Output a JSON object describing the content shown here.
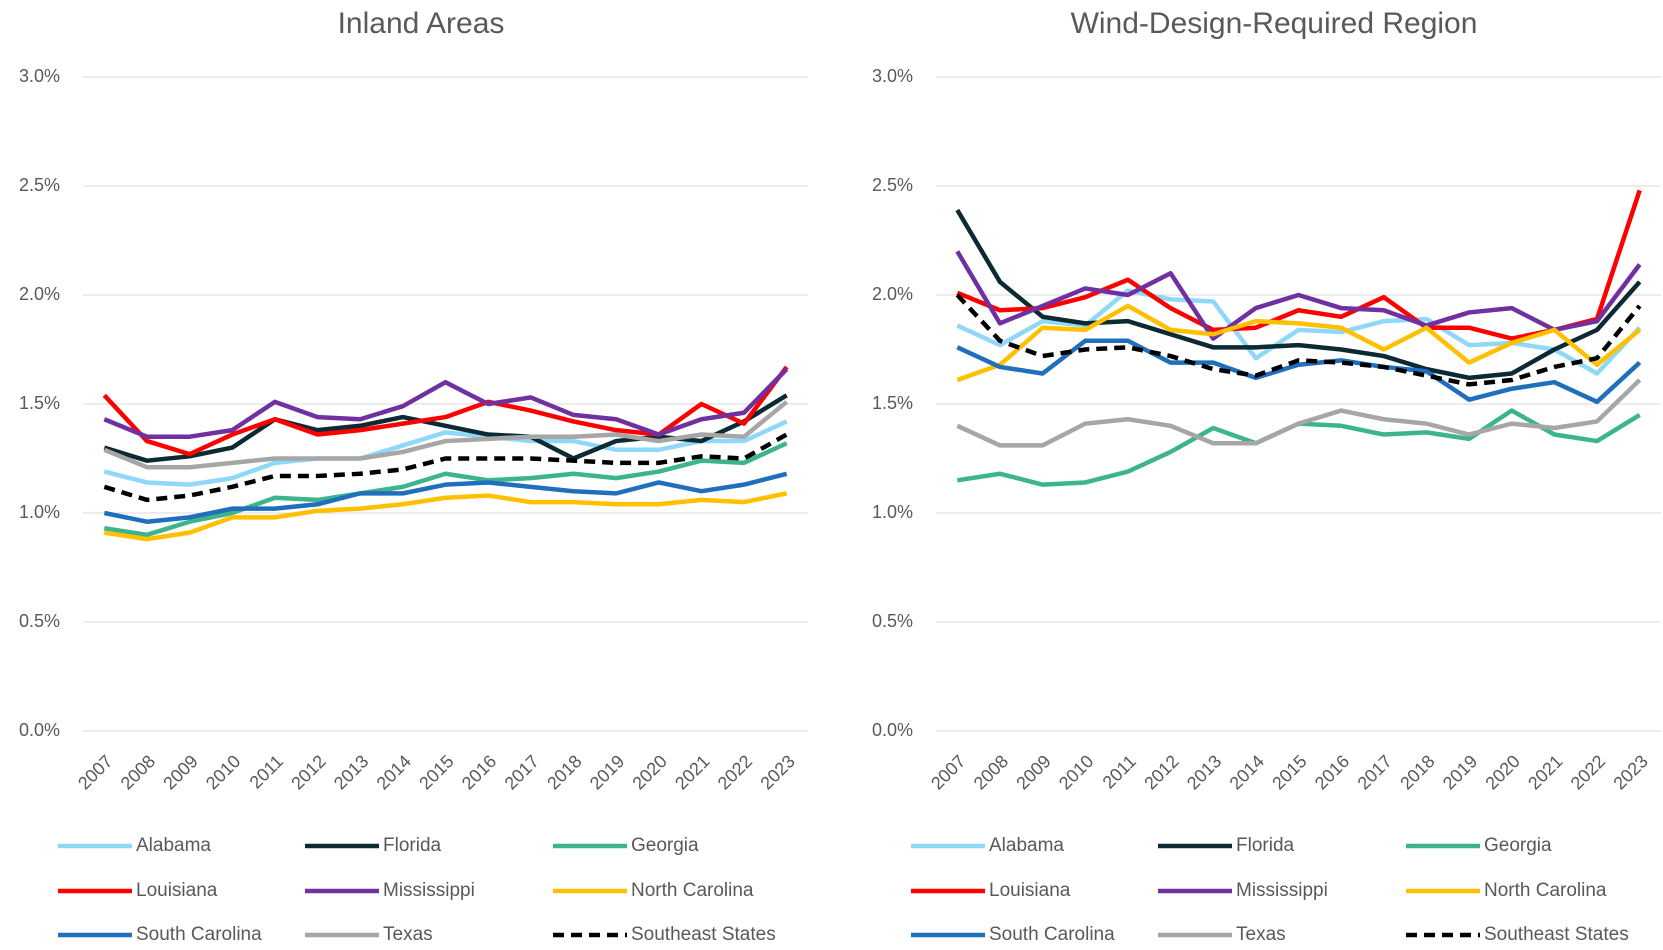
{
  "chart_data": [
    {
      "type": "line",
      "title": "Inland Areas",
      "categories": [
        "2007",
        "2008",
        "2009",
        "2010",
        "2011",
        "2012",
        "2013",
        "2014",
        "2015",
        "2016",
        "2017",
        "2018",
        "2019",
        "2020",
        "2021",
        "2022",
        "2023"
      ],
      "ylim": [
        0,
        3
      ],
      "grid": true,
      "yticks": [
        {
          "value": 0,
          "label": "0.0%"
        },
        {
          "value": 0.5,
          "label": "0.5%"
        },
        {
          "value": 1,
          "label": "1.0%"
        },
        {
          "value": 1.5,
          "label": "1.5%"
        },
        {
          "value": 2,
          "label": "2.0%"
        },
        {
          "value": 2.5,
          "label": "2.5%"
        },
        {
          "value": 3,
          "label": "3.0%"
        }
      ],
      "series": [
        {
          "name": "Alabama",
          "color": "#8fd8f8",
          "values": [
            1.19,
            1.14,
            1.13,
            1.16,
            1.23,
            1.25,
            1.25,
            1.31,
            1.37,
            1.35,
            1.33,
            1.33,
            1.29,
            1.29,
            1.33,
            1.33,
            1.42
          ]
        },
        {
          "name": "Florida",
          "color": "#0b2a33",
          "values": [
            1.3,
            1.24,
            1.26,
            1.3,
            1.43,
            1.38,
            1.4,
            1.44,
            1.4,
            1.36,
            1.35,
            1.25,
            1.33,
            1.35,
            1.33,
            1.42,
            1.54
          ]
        },
        {
          "name": "Georgia",
          "color": "#3db58c",
          "values": [
            0.93,
            0.9,
            0.96,
            1.0,
            1.07,
            1.06,
            1.09,
            1.12,
            1.18,
            1.15,
            1.16,
            1.18,
            1.16,
            1.19,
            1.24,
            1.23,
            1.32
          ]
        },
        {
          "name": "Louisiana",
          "color": "#ff0000",
          "values": [
            1.54,
            1.33,
            1.27,
            1.36,
            1.43,
            1.36,
            1.38,
            1.41,
            1.44,
            1.51,
            1.47,
            1.42,
            1.38,
            1.36,
            1.5,
            1.41,
            1.67
          ]
        },
        {
          "name": "Mississippi",
          "color": "#7030a0",
          "values": [
            1.43,
            1.35,
            1.35,
            1.38,
            1.51,
            1.44,
            1.43,
            1.49,
            1.6,
            1.5,
            1.53,
            1.45,
            1.43,
            1.36,
            1.43,
            1.46,
            1.66
          ]
        },
        {
          "name": "North Carolina",
          "color": "#ffc000",
          "values": [
            0.91,
            0.88,
            0.91,
            0.98,
            0.98,
            1.01,
            1.02,
            1.04,
            1.07,
            1.08,
            1.05,
            1.05,
            1.04,
            1.04,
            1.06,
            1.05,
            1.09
          ]
        },
        {
          "name": "South Carolina",
          "color": "#1f6fbd",
          "values": [
            1.0,
            0.96,
            0.98,
            1.02,
            1.02,
            1.04,
            1.09,
            1.09,
            1.13,
            1.14,
            1.12,
            1.1,
            1.09,
            1.14,
            1.1,
            1.13,
            1.18
          ]
        },
        {
          "name": "Texas",
          "color": "#a6a6a6",
          "values": [
            1.29,
            1.21,
            1.21,
            1.23,
            1.25,
            1.25,
            1.25,
            1.28,
            1.33,
            1.34,
            1.35,
            1.35,
            1.36,
            1.33,
            1.36,
            1.35,
            1.51
          ]
        },
        {
          "name": "Southeast States",
          "color": "#000000",
          "dashed": true,
          "values": [
            1.12,
            1.06,
            1.08,
            1.12,
            1.17,
            1.17,
            1.18,
            1.2,
            1.25,
            1.25,
            1.25,
            1.24,
            1.23,
            1.23,
            1.26,
            1.25,
            1.36
          ]
        }
      ]
    },
    {
      "type": "line",
      "title": "Wind-Design-Required Region",
      "categories": [
        "2007",
        "2008",
        "2009",
        "2010",
        "2011",
        "2012",
        "2013",
        "2014",
        "2015",
        "2016",
        "2017",
        "2018",
        "2019",
        "2020",
        "2021",
        "2022",
        "2023"
      ],
      "ylim": [
        0,
        3
      ],
      "grid": true,
      "yticks": [
        {
          "value": 0,
          "label": "0.0%"
        },
        {
          "value": 0.5,
          "label": "0.5%"
        },
        {
          "value": 1,
          "label": "1.0%"
        },
        {
          "value": 1.5,
          "label": "1.5%"
        },
        {
          "value": 2,
          "label": "2.0%"
        },
        {
          "value": 2.5,
          "label": "2.5%"
        },
        {
          "value": 3,
          "label": "3.0%"
        }
      ],
      "series": [
        {
          "name": "Alabama",
          "color": "#8fd8f8",
          "values": [
            1.86,
            1.77,
            1.88,
            1.86,
            2.02,
            1.98,
            1.97,
            1.71,
            1.84,
            1.83,
            1.88,
            1.89,
            1.77,
            1.78,
            1.75,
            1.64,
            1.85
          ]
        },
        {
          "name": "Florida",
          "color": "#0b2a33",
          "values": [
            2.39,
            2.06,
            1.9,
            1.87,
            1.88,
            1.82,
            1.76,
            1.76,
            1.77,
            1.75,
            1.72,
            1.66,
            1.62,
            1.64,
            1.75,
            1.84,
            2.06
          ]
        },
        {
          "name": "Georgia",
          "color": "#3db58c",
          "values": [
            1.15,
            1.18,
            1.13,
            1.14,
            1.19,
            1.28,
            1.39,
            1.32,
            1.41,
            1.4,
            1.36,
            1.37,
            1.34,
            1.47,
            1.36,
            1.33,
            1.45
          ]
        },
        {
          "name": "Louisiana",
          "color": "#ff0000",
          "values": [
            2.01,
            1.93,
            1.94,
            1.99,
            2.07,
            1.94,
            1.84,
            1.85,
            1.93,
            1.9,
            1.99,
            1.85,
            1.85,
            1.8,
            1.84,
            1.89,
            2.48
          ]
        },
        {
          "name": "Mississippi",
          "color": "#7030a0",
          "values": [
            2.2,
            1.87,
            1.95,
            2.03,
            2.0,
            2.1,
            1.8,
            1.94,
            2.0,
            1.94,
            1.93,
            1.86,
            1.92,
            1.94,
            1.84,
            1.88,
            2.14
          ]
        },
        {
          "name": "North Carolina",
          "color": "#ffc000",
          "values": [
            1.61,
            1.68,
            1.85,
            1.84,
            1.95,
            1.84,
            1.82,
            1.88,
            1.87,
            1.85,
            1.75,
            1.85,
            1.69,
            1.78,
            1.84,
            1.68,
            1.84
          ]
        },
        {
          "name": "South Carolina",
          "color": "#1f6fbd",
          "values": [
            1.76,
            1.67,
            1.64,
            1.79,
            1.79,
            1.69,
            1.69,
            1.62,
            1.68,
            1.7,
            1.67,
            1.65,
            1.52,
            1.57,
            1.6,
            1.51,
            1.69
          ]
        },
        {
          "name": "Texas",
          "color": "#a6a6a6",
          "values": [
            1.4,
            1.31,
            1.31,
            1.41,
            1.43,
            1.4,
            1.32,
            1.32,
            1.41,
            1.47,
            1.43,
            1.41,
            1.36,
            1.41,
            1.39,
            1.42,
            1.61
          ]
        },
        {
          "name": "Southeast States",
          "color": "#000000",
          "dashed": true,
          "values": [
            2.0,
            1.79,
            1.72,
            1.75,
            1.76,
            1.72,
            1.66,
            1.63,
            1.7,
            1.69,
            1.67,
            1.63,
            1.59,
            1.61,
            1.67,
            1.71,
            1.95
          ]
        }
      ]
    }
  ]
}
